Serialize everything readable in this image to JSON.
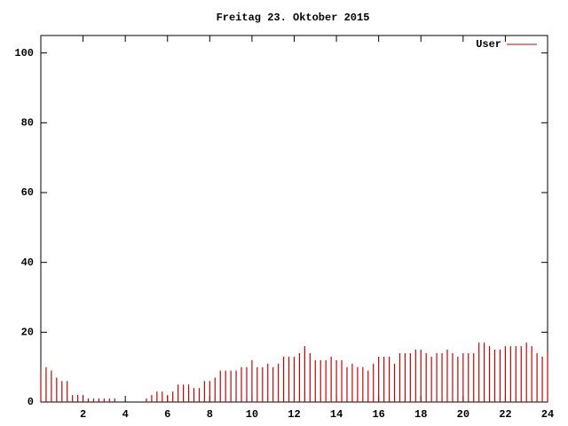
{
  "chart_data": {
    "type": "impulses",
    "title": "Freitag 23. Oktober 2015",
    "xlim": [
      0,
      24
    ],
    "xticks": [
      2,
      4,
      6,
      8,
      10,
      12,
      14,
      16,
      18,
      20,
      22,
      24
    ],
    "ylim": [
      0,
      105
    ],
    "yticks": [
      0,
      20,
      40,
      60,
      80,
      100
    ],
    "legend": "top-right",
    "x": [
      0,
      0.25,
      0.5,
      0.75,
      1,
      1.25,
      1.5,
      1.75,
      2,
      2.25,
      2.5,
      2.75,
      3,
      3.25,
      3.5,
      3.75,
      4,
      4.25,
      4.5,
      4.75,
      5,
      5.25,
      5.5,
      5.75,
      6,
      6.25,
      6.5,
      6.75,
      7,
      7.25,
      7.5,
      7.75,
      8,
      8.25,
      8.5,
      8.75,
      9,
      9.25,
      9.5,
      9.75,
      10,
      10.25,
      10.5,
      10.75,
      11,
      11.25,
      11.5,
      11.75,
      12,
      12.25,
      12.5,
      12.75,
      13,
      13.25,
      13.5,
      13.75,
      14,
      14.25,
      14.5,
      14.75,
      15,
      15.25,
      15.5,
      15.75,
      16,
      16.25,
      16.5,
      16.75,
      17,
      17.25,
      17.5,
      17.75,
      18,
      18.25,
      18.5,
      18.75,
      19,
      19.25,
      19.5,
      19.75,
      20,
      20.25,
      20.5,
      20.75,
      21,
      21.25,
      21.5,
      21.75,
      22,
      22.25,
      22.5,
      22.75,
      23,
      23.25,
      23.5,
      23.75,
      24
    ],
    "series": [
      {
        "name": "User",
        "color": "#cc0000",
        "values": [
          9,
          10,
          9,
          7,
          6,
          6,
          2,
          2,
          2,
          1,
          1,
          1,
          1,
          1,
          1,
          0,
          0,
          0,
          0,
          0,
          1,
          2,
          3,
          3,
          2,
          3,
          5,
          5,
          5,
          4,
          4,
          6,
          6,
          7,
          9,
          9,
          9,
          9,
          10,
          10,
          12,
          10,
          10,
          11,
          10,
          11,
          13,
          13,
          13,
          14,
          16,
          14,
          12,
          12,
          12,
          13,
          12,
          12,
          10,
          11,
          10,
          10,
          9,
          11,
          13,
          13,
          13,
          11,
          14,
          14,
          14,
          15,
          15,
          14,
          13,
          14,
          14,
          15,
          14,
          13,
          14,
          14,
          14,
          17,
          17,
          16,
          15,
          15,
          16,
          16,
          16,
          16,
          17,
          16,
          14,
          13,
          14
        ]
      }
    ]
  }
}
